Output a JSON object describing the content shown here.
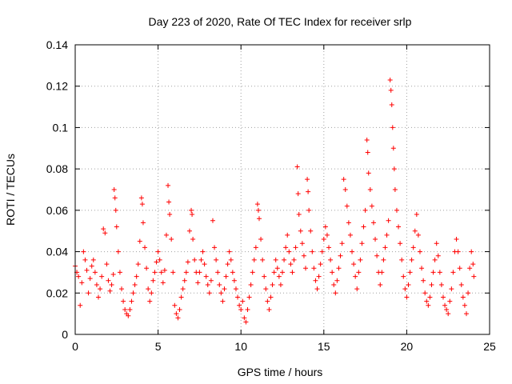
{
  "chart_data": {
    "type": "scatter",
    "title": "Day 223 of 2020, Rate Of TEC Index for receiver srlp",
    "xlabel": "GPS time / hours",
    "ylabel": "ROTI / TECUs",
    "xlim": [
      0,
      25
    ],
    "ylim": [
      0,
      0.14
    ],
    "xticks": [
      0,
      5,
      10,
      15,
      20,
      25
    ],
    "xtick_labels": [
      "0",
      "5",
      "10",
      "15",
      "20",
      "25"
    ],
    "yticks": [
      0,
      0.02,
      0.04,
      0.06,
      0.08,
      0.1,
      0.12,
      0.14
    ],
    "ytick_labels": [
      "0",
      "0.02",
      "0.04",
      "0.06",
      "0.08",
      "0.1",
      "0.12",
      "0.14"
    ],
    "grid": true,
    "marker": "+",
    "color": "#ff0000",
    "series": [
      {
        "name": "ROTI",
        "points": [
          [
            0.0,
            0.033
          ],
          [
            0.1,
            0.03
          ],
          [
            0.2,
            0.028
          ],
          [
            0.3,
            0.014
          ],
          [
            0.4,
            0.025
          ],
          [
            0.5,
            0.04
          ],
          [
            0.6,
            0.036
          ],
          [
            0.7,
            0.031
          ],
          [
            0.8,
            0.02
          ],
          [
            0.9,
            0.027
          ],
          [
            1.0,
            0.033
          ],
          [
            1.1,
            0.036
          ],
          [
            1.2,
            0.03
          ],
          [
            1.3,
            0.024
          ],
          [
            1.4,
            0.018
          ],
          [
            1.5,
            0.022
          ],
          [
            1.6,
            0.028
          ],
          [
            1.7,
            0.051
          ],
          [
            1.8,
            0.049
          ],
          [
            1.9,
            0.034
          ],
          [
            2.0,
            0.026
          ],
          [
            2.1,
            0.021
          ],
          [
            2.2,
            0.024
          ],
          [
            2.3,
            0.029
          ],
          [
            2.35,
            0.07
          ],
          [
            2.4,
            0.066
          ],
          [
            2.45,
            0.06
          ],
          [
            2.5,
            0.052
          ],
          [
            2.6,
            0.04
          ],
          [
            2.7,
            0.03
          ],
          [
            2.8,
            0.022
          ],
          [
            2.9,
            0.016
          ],
          [
            3.0,
            0.012
          ],
          [
            3.1,
            0.01
          ],
          [
            3.2,
            0.009
          ],
          [
            3.3,
            0.012
          ],
          [
            3.4,
            0.016
          ],
          [
            3.5,
            0.02
          ],
          [
            3.6,
            0.024
          ],
          [
            3.7,
            0.028
          ],
          [
            3.8,
            0.034
          ],
          [
            3.9,
            0.045
          ],
          [
            4.0,
            0.066
          ],
          [
            4.05,
            0.063
          ],
          [
            4.1,
            0.054
          ],
          [
            4.2,
            0.042
          ],
          [
            4.3,
            0.032
          ],
          [
            4.4,
            0.022
          ],
          [
            4.5,
            0.016
          ],
          [
            4.6,
            0.02
          ],
          [
            4.7,
            0.026
          ],
          [
            4.8,
            0.03
          ],
          [
            4.9,
            0.035
          ],
          [
            5.0,
            0.04
          ],
          [
            5.1,
            0.036
          ],
          [
            5.2,
            0.03
          ],
          [
            5.3,
            0.025
          ],
          [
            5.4,
            0.031
          ],
          [
            5.5,
            0.048
          ],
          [
            5.6,
            0.072
          ],
          [
            5.65,
            0.064
          ],
          [
            5.7,
            0.058
          ],
          [
            5.8,
            0.046
          ],
          [
            5.9,
            0.03
          ],
          [
            6.0,
            0.014
          ],
          [
            6.1,
            0.01
          ],
          [
            6.2,
            0.008
          ],
          [
            6.3,
            0.012
          ],
          [
            6.4,
            0.018
          ],
          [
            6.5,
            0.022
          ],
          [
            6.6,
            0.026
          ],
          [
            6.7,
            0.03
          ],
          [
            6.8,
            0.035
          ],
          [
            6.9,
            0.05
          ],
          [
            7.0,
            0.06
          ],
          [
            7.05,
            0.058
          ],
          [
            7.1,
            0.046
          ],
          [
            7.2,
            0.036
          ],
          [
            7.3,
            0.03
          ],
          [
            7.4,
            0.025
          ],
          [
            7.5,
            0.03
          ],
          [
            7.6,
            0.036
          ],
          [
            7.7,
            0.04
          ],
          [
            7.8,
            0.034
          ],
          [
            7.9,
            0.028
          ],
          [
            8.0,
            0.024
          ],
          [
            8.1,
            0.02
          ],
          [
            8.2,
            0.026
          ],
          [
            8.3,
            0.055
          ],
          [
            8.4,
            0.042
          ],
          [
            8.5,
            0.036
          ],
          [
            8.6,
            0.03
          ],
          [
            8.7,
            0.024
          ],
          [
            8.8,
            0.02
          ],
          [
            8.9,
            0.016
          ],
          [
            9.0,
            0.022
          ],
          [
            9.1,
            0.028
          ],
          [
            9.2,
            0.034
          ],
          [
            9.3,
            0.04
          ],
          [
            9.4,
            0.036
          ],
          [
            9.5,
            0.03
          ],
          [
            9.6,
            0.026
          ],
          [
            9.7,
            0.022
          ],
          [
            9.8,
            0.018
          ],
          [
            9.9,
            0.014
          ],
          [
            10.0,
            0.012
          ],
          [
            10.1,
            0.016
          ],
          [
            10.2,
            0.008
          ],
          [
            10.3,
            0.006
          ],
          [
            10.4,
            0.012
          ],
          [
            10.5,
            0.018
          ],
          [
            10.6,
            0.024
          ],
          [
            10.7,
            0.03
          ],
          [
            10.8,
            0.036
          ],
          [
            10.9,
            0.042
          ],
          [
            11.0,
            0.063
          ],
          [
            11.05,
            0.06
          ],
          [
            11.1,
            0.056
          ],
          [
            11.2,
            0.046
          ],
          [
            11.3,
            0.036
          ],
          [
            11.4,
            0.028
          ],
          [
            11.5,
            0.022
          ],
          [
            11.6,
            0.016
          ],
          [
            11.7,
            0.012
          ],
          [
            11.8,
            0.018
          ],
          [
            11.9,
            0.024
          ],
          [
            12.0,
            0.03
          ],
          [
            12.1,
            0.036
          ],
          [
            12.2,
            0.032
          ],
          [
            12.3,
            0.028
          ],
          [
            12.4,
            0.024
          ],
          [
            12.5,
            0.03
          ],
          [
            12.6,
            0.036
          ],
          [
            12.7,
            0.042
          ],
          [
            12.8,
            0.048
          ],
          [
            12.9,
            0.04
          ],
          [
            13.0,
            0.034
          ],
          [
            13.1,
            0.03
          ],
          [
            13.2,
            0.036
          ],
          [
            13.3,
            0.042
          ],
          [
            13.4,
            0.081
          ],
          [
            13.45,
            0.068
          ],
          [
            13.5,
            0.058
          ],
          [
            13.6,
            0.05
          ],
          [
            13.7,
            0.044
          ],
          [
            13.8,
            0.038
          ],
          [
            13.9,
            0.032
          ],
          [
            14.0,
            0.075
          ],
          [
            14.05,
            0.069
          ],
          [
            14.1,
            0.06
          ],
          [
            14.2,
            0.05
          ],
          [
            14.3,
            0.04
          ],
          [
            14.4,
            0.032
          ],
          [
            14.5,
            0.026
          ],
          [
            14.6,
            0.022
          ],
          [
            14.7,
            0.028
          ],
          [
            14.8,
            0.034
          ],
          [
            14.9,
            0.04
          ],
          [
            15.0,
            0.046
          ],
          [
            15.1,
            0.052
          ],
          [
            15.2,
            0.048
          ],
          [
            15.3,
            0.042
          ],
          [
            15.4,
            0.036
          ],
          [
            15.5,
            0.03
          ],
          [
            15.6,
            0.024
          ],
          [
            15.7,
            0.02
          ],
          [
            15.8,
            0.026
          ],
          [
            15.9,
            0.032
          ],
          [
            16.0,
            0.038
          ],
          [
            16.1,
            0.044
          ],
          [
            16.2,
            0.075
          ],
          [
            16.3,
            0.07
          ],
          [
            16.4,
            0.062
          ],
          [
            16.5,
            0.054
          ],
          [
            16.6,
            0.048
          ],
          [
            16.7,
            0.04
          ],
          [
            16.8,
            0.034
          ],
          [
            16.9,
            0.028
          ],
          [
            17.0,
            0.022
          ],
          [
            17.1,
            0.03
          ],
          [
            17.2,
            0.036
          ],
          [
            17.3,
            0.044
          ],
          [
            17.4,
            0.052
          ],
          [
            17.5,
            0.06
          ],
          [
            17.6,
            0.094
          ],
          [
            17.65,
            0.088
          ],
          [
            17.7,
            0.078
          ],
          [
            17.8,
            0.07
          ],
          [
            17.9,
            0.062
          ],
          [
            18.0,
            0.054
          ],
          [
            18.1,
            0.046
          ],
          [
            18.2,
            0.038
          ],
          [
            18.3,
            0.03
          ],
          [
            18.4,
            0.024
          ],
          [
            18.5,
            0.03
          ],
          [
            18.6,
            0.036
          ],
          [
            18.7,
            0.042
          ],
          [
            18.8,
            0.048
          ],
          [
            18.9,
            0.055
          ],
          [
            19.0,
            0.123
          ],
          [
            19.05,
            0.118
          ],
          [
            19.1,
            0.111
          ],
          [
            19.15,
            0.1
          ],
          [
            19.2,
            0.09
          ],
          [
            19.25,
            0.08
          ],
          [
            19.3,
            0.07
          ],
          [
            19.4,
            0.06
          ],
          [
            19.5,
            0.052
          ],
          [
            19.6,
            0.044
          ],
          [
            19.7,
            0.036
          ],
          [
            19.8,
            0.028
          ],
          [
            19.9,
            0.022
          ],
          [
            20.0,
            0.018
          ],
          [
            20.1,
            0.024
          ],
          [
            20.2,
            0.03
          ],
          [
            20.3,
            0.036
          ],
          [
            20.4,
            0.042
          ],
          [
            20.5,
            0.05
          ],
          [
            20.6,
            0.058
          ],
          [
            20.7,
            0.048
          ],
          [
            20.8,
            0.04
          ],
          [
            20.9,
            0.032
          ],
          [
            21.0,
            0.026
          ],
          [
            21.1,
            0.02
          ],
          [
            21.2,
            0.016
          ],
          [
            21.3,
            0.014
          ],
          [
            21.4,
            0.018
          ],
          [
            21.5,
            0.024
          ],
          [
            21.6,
            0.03
          ],
          [
            21.7,
            0.036
          ],
          [
            21.8,
            0.044
          ],
          [
            21.9,
            0.038
          ],
          [
            22.0,
            0.03
          ],
          [
            22.1,
            0.024
          ],
          [
            22.2,
            0.018
          ],
          [
            22.3,
            0.014
          ],
          [
            22.4,
            0.012
          ],
          [
            22.5,
            0.01
          ],
          [
            22.6,
            0.016
          ],
          [
            22.7,
            0.022
          ],
          [
            22.8,
            0.03
          ],
          [
            22.9,
            0.04
          ],
          [
            23.0,
            0.046
          ],
          [
            23.1,
            0.04
          ],
          [
            23.2,
            0.032
          ],
          [
            23.3,
            0.024
          ],
          [
            23.4,
            0.018
          ],
          [
            23.5,
            0.014
          ],
          [
            23.6,
            0.01
          ],
          [
            23.7,
            0.02
          ],
          [
            23.8,
            0.032
          ],
          [
            23.9,
            0.04
          ],
          [
            24.0,
            0.034
          ],
          [
            24.05,
            0.028
          ]
        ]
      }
    ]
  }
}
